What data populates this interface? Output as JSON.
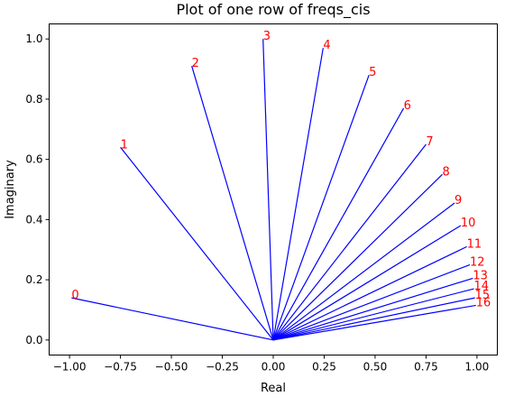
{
  "chart_data": {
    "type": "line",
    "title": "Plot of one row of freqs_cis",
    "xlabel": "Real",
    "ylabel": "Imaginary",
    "xlim": [
      -1.1,
      1.1
    ],
    "ylim": [
      -0.05,
      1.05
    ],
    "xticks": [
      -1.0,
      -0.75,
      -0.5,
      -0.25,
      0.0,
      0.25,
      0.5,
      0.75,
      1.0
    ],
    "xtick_labels": [
      "−1.00",
      "−0.75",
      "−0.50",
      "−0.25",
      "0.00",
      "0.25",
      "0.50",
      "0.75",
      "1.00"
    ],
    "yticks": [
      0.0,
      0.2,
      0.4,
      0.6,
      0.8,
      1.0
    ],
    "ytick_labels": [
      "0.0",
      "0.2",
      "0.4",
      "0.6",
      "0.8",
      "1.0"
    ],
    "grid": false,
    "line_color": "#0000ff",
    "label_color": "#ff0000",
    "origin": [
      0.0,
      0.0
    ],
    "points": [
      {
        "label": "0",
        "x": -0.99,
        "y": 0.14
      },
      {
        "label": "1",
        "x": -0.75,
        "y": 0.64
      },
      {
        "label": "2",
        "x": -0.4,
        "y": 0.91
      },
      {
        "label": "3",
        "x": -0.05,
        "y": 1.0
      },
      {
        "label": "4",
        "x": 0.245,
        "y": 0.97
      },
      {
        "label": "5",
        "x": 0.47,
        "y": 0.88
      },
      {
        "label": "6",
        "x": 0.64,
        "y": 0.77
      },
      {
        "label": "7",
        "x": 0.75,
        "y": 0.65
      },
      {
        "label": "8",
        "x": 0.83,
        "y": 0.55
      },
      {
        "label": "9",
        "x": 0.89,
        "y": 0.455
      },
      {
        "label": "10",
        "x": 0.92,
        "y": 0.38
      },
      {
        "label": "11",
        "x": 0.95,
        "y": 0.31
      },
      {
        "label": "12",
        "x": 0.965,
        "y": 0.25
      },
      {
        "label": "13",
        "x": 0.98,
        "y": 0.205
      },
      {
        "label": "14",
        "x": 0.985,
        "y": 0.17
      },
      {
        "label": "15",
        "x": 0.99,
        "y": 0.14
      },
      {
        "label": "16",
        "x": 0.995,
        "y": 0.115
      }
    ]
  }
}
